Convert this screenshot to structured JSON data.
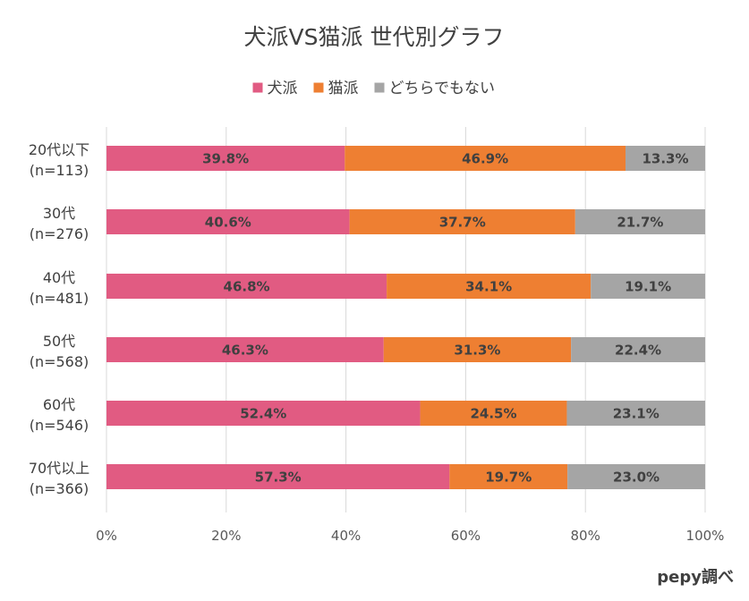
{
  "chart_data": {
    "type": "bar",
    "orientation": "horizontal",
    "stacked": "percent",
    "title": "犬派VS猫派 世代別グラフ",
    "legend_position": "top",
    "categories": [
      {
        "label": "20代以下",
        "n": "(n=113)"
      },
      {
        "label": "30代",
        "n": "(n=276)"
      },
      {
        "label": "40代",
        "n": "(n=481)"
      },
      {
        "label": "50代",
        "n": "(n=568)"
      },
      {
        "label": "60代",
        "n": "(n=546)"
      },
      {
        "label": "70代以上",
        "n": "(n=366)"
      }
    ],
    "series": [
      {
        "name": "犬派",
        "color": "#E15B82",
        "values": [
          39.8,
          40.6,
          46.8,
          46.3,
          52.4,
          57.3
        ],
        "labels": [
          "39.8%",
          "40.6%",
          "46.8%",
          "46.3%",
          "52.4%",
          "57.3%"
        ]
      },
      {
        "name": "猫派",
        "color": "#EE7F32",
        "values": [
          46.9,
          37.7,
          34.1,
          31.3,
          24.5,
          19.7
        ],
        "labels": [
          "46.9%",
          "37.7%",
          "34.1%",
          "31.3%",
          "24.5%",
          "19.7%"
        ]
      },
      {
        "name": "どちらでもない",
        "color": "#A5A5A5",
        "values": [
          13.3,
          21.7,
          19.1,
          22.4,
          23.1,
          23.0
        ],
        "labels": [
          "13.3%",
          "21.7%",
          "19.1%",
          "22.4%",
          "23.1%",
          "23.0%"
        ]
      }
    ],
    "xlim": [
      0,
      100
    ],
    "xticks": [
      "0%",
      "20%",
      "40%",
      "60%",
      "80%",
      "100%"
    ],
    "grid": true,
    "credit": "pepy調べ"
  }
}
